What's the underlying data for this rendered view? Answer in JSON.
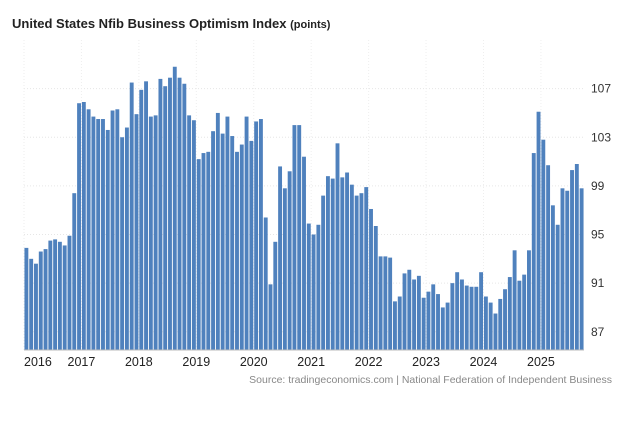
{
  "chart_data": {
    "type": "bar",
    "title": "United States Nfib Business Optimism Index",
    "unit": "(points)",
    "source": "Source: tradingeconomics.com | National Federation of Independent Business",
    "color": "#4f81bd",
    "ylim": [
      85.5,
      111
    ],
    "y_ticks": [
      87,
      91,
      95,
      99,
      103,
      107
    ],
    "x_ticks": [
      "2016",
      "2017",
      "2018",
      "2019",
      "2020",
      "2021",
      "2022",
      "2023",
      "2024",
      "2025"
    ],
    "start": "2016-01",
    "grid": true,
    "values": [
      93.9,
      93.0,
      92.6,
      93.6,
      93.8,
      94.5,
      94.6,
      94.4,
      94.1,
      94.9,
      98.4,
      105.8,
      105.9,
      105.3,
      104.7,
      104.5,
      104.5,
      103.6,
      105.2,
      105.3,
      103.0,
      103.8,
      107.5,
      104.9,
      106.9,
      107.6,
      104.7,
      104.8,
      107.8,
      107.2,
      107.9,
      108.8,
      107.9,
      107.4,
      104.8,
      104.4,
      101.2,
      101.7,
      101.8,
      103.5,
      105.0,
      103.3,
      104.7,
      103.1,
      101.8,
      102.4,
      104.7,
      102.7,
      104.3,
      104.5,
      96.4,
      90.9,
      94.4,
      100.6,
      98.8,
      100.2,
      104.0,
      104.0,
      101.4,
      95.9,
      95.0,
      95.8,
      98.2,
      99.8,
      99.6,
      102.5,
      99.7,
      100.1,
      99.1,
      98.2,
      98.4,
      98.9,
      97.1,
      95.7,
      93.2,
      93.2,
      93.1,
      89.5,
      89.9,
      91.8,
      92.1,
      91.3,
      91.6,
      89.8,
      90.3,
      90.9,
      90.1,
      89.0,
      89.4,
      91.0,
      91.9,
      91.3,
      90.8,
      90.7,
      90.7,
      91.9,
      89.9,
      89.4,
      88.5,
      89.7,
      90.5,
      91.5,
      93.7,
      91.2,
      91.7,
      93.7,
      101.7,
      105.1,
      102.8,
      100.7,
      97.4,
      95.8,
      98.8,
      98.6,
      100.3,
      100.8,
      98.8
    ]
  }
}
